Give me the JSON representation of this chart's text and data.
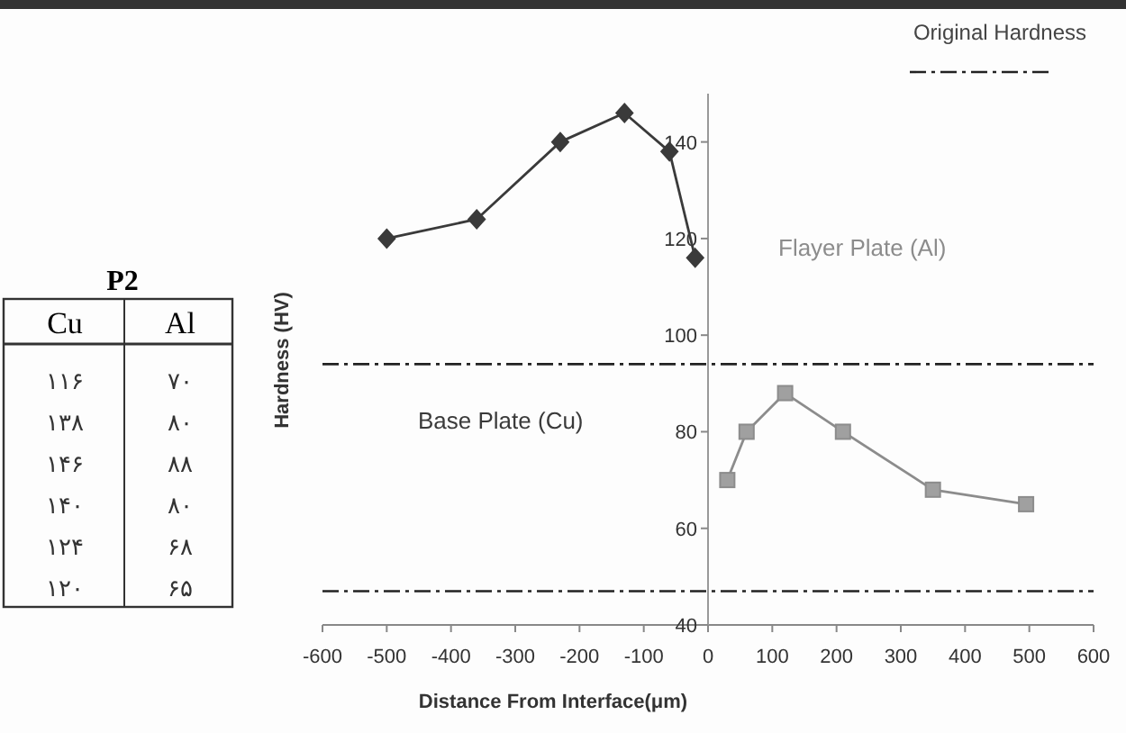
{
  "chart_data": [
    {
      "type": "line",
      "xlabel": "Distance From Interface(μm)",
      "ylabel": "Hardness (HV)",
      "legend_title": "Original Hardness",
      "legend": "top right",
      "xlim": [
        -600,
        600
      ],
      "xticks": [
        -600,
        -500,
        -400,
        -300,
        -200,
        -100,
        0,
        100,
        200,
        300,
        400,
        500,
        600
      ],
      "ylim": [
        40,
        150
      ],
      "yticks": [
        40,
        60,
        80,
        100,
        120,
        140
      ],
      "line_style": "solid",
      "series": [
        {
          "name": "Base Plate (Cu)",
          "color": "#3a3a3a",
          "marker": "diamond",
          "x": [
            -20,
            -60,
            -130,
            -230,
            -360,
            -500
          ],
          "values": [
            116,
            138,
            146,
            140,
            124,
            120
          ]
        },
        {
          "name": "Flayer Plate (Al)",
          "color": "#8c8c8c",
          "marker": "square",
          "x": [
            30,
            60,
            120,
            210,
            350,
            495
          ],
          "values": [
            70,
            80,
            88,
            80,
            68,
            65
          ]
        }
      ],
      "ref_lines": [
        {
          "axis": "y",
          "value": 94,
          "color": "#222222",
          "line_style": "dashed"
        },
        {
          "axis": "y",
          "value": 47,
          "color": "#222222",
          "line_style": "dashed"
        }
      ]
    },
    {
      "type": "other",
      "title": "P2",
      "annotations": [
        "Cu",
        "Al",
        "۱۱۶",
        "۷۰",
        "۱۳۸",
        "۸۰",
        "۱۴۶",
        "۸۸",
        "۱۴۰",
        "۸۰",
        "۱۲۴",
        "۶۸",
        "۱۲۰",
        "۶۵"
      ]
    }
  ]
}
